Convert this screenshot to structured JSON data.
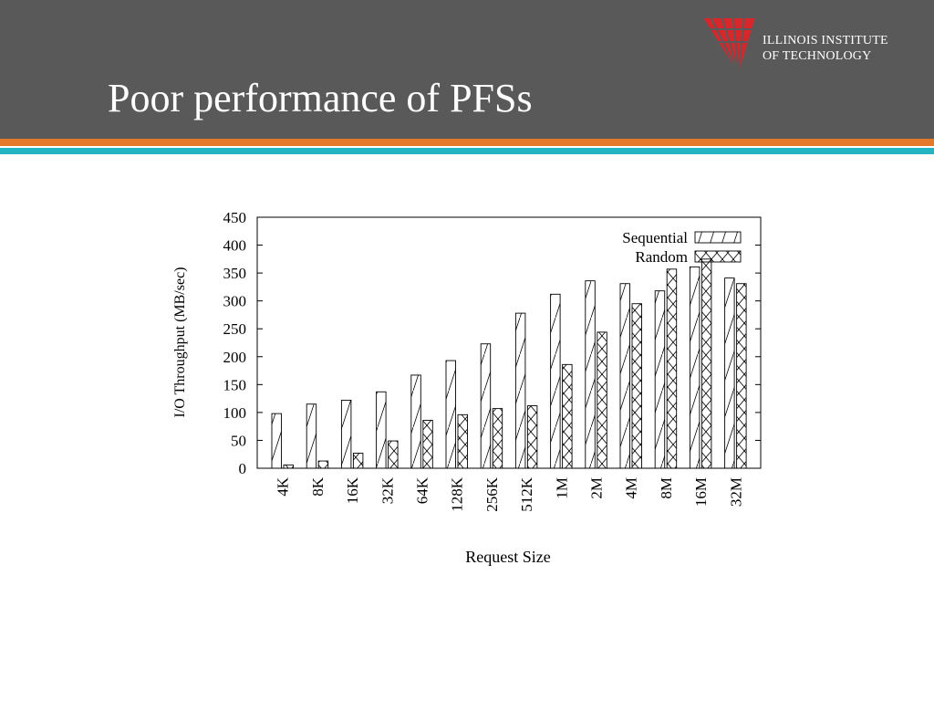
{
  "slide": {
    "title": "Poor performance of PFSs"
  },
  "logo": {
    "line1": "ILLINOIS INSTITUTE",
    "line2": "OF TECHNOLOGY"
  },
  "colors": {
    "header": "#595959",
    "accent_orange": "#e5792a",
    "accent_teal": "#23b3c2",
    "logo_red": "#d9262a"
  },
  "chart_data": {
    "type": "bar",
    "title": "",
    "xlabel": "Request Size",
    "ylabel": "I/O Throughput (MB/sec)",
    "ylim": [
      0,
      450
    ],
    "yticks": [
      0,
      50,
      100,
      150,
      200,
      250,
      300,
      350,
      400,
      450
    ],
    "categories": [
      "4K",
      "8K",
      "16K",
      "32K",
      "64K",
      "128K",
      "256K",
      "512K",
      "1M",
      "2M",
      "4M",
      "8M",
      "16M",
      "32M"
    ],
    "series": [
      {
        "name": "Sequential",
        "pattern": "diagonal-hatch",
        "values": [
          98,
          115,
          122,
          137,
          167,
          193,
          223,
          278,
          312,
          336,
          331,
          318,
          361,
          341
        ]
      },
      {
        "name": "Random",
        "pattern": "cross-hatch",
        "values": [
          6,
          13,
          27,
          49,
          86,
          96,
          107,
          112,
          186,
          244,
          295,
          357,
          375,
          331
        ]
      }
    ],
    "legend_position": "top-right",
    "grid": false
  }
}
